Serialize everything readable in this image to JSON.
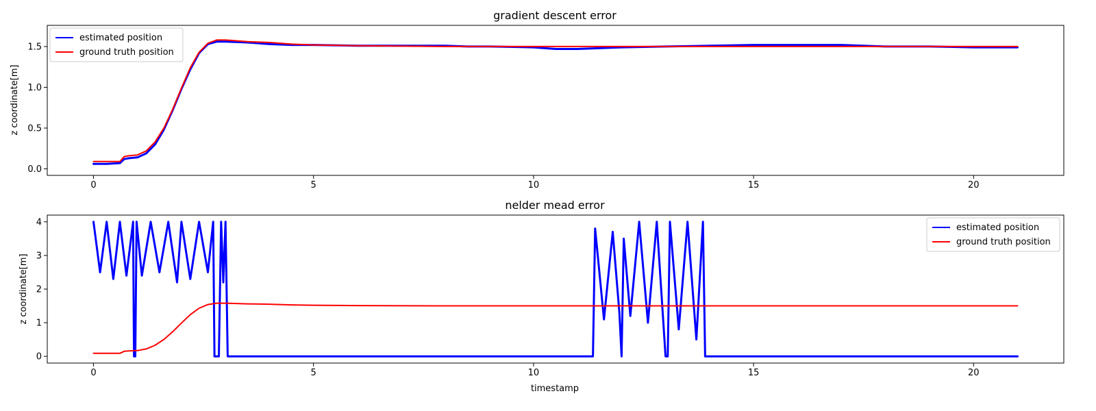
{
  "chart_data": [
    {
      "type": "line",
      "title": "gradient descent error",
      "xlabel": "",
      "ylabel": "z coordinate[m]",
      "xlim": [
        -1.05,
        22.05
      ],
      "ylim": [
        -0.08,
        1.76
      ],
      "xticks": [
        0,
        5,
        10,
        15,
        20
      ],
      "yticks": [
        0.0,
        0.5,
        1.0,
        1.5
      ],
      "ytick_labels": [
        "0.0",
        "0.5",
        "1.0",
        "1.5"
      ],
      "legend_position": "top-left",
      "grid": false,
      "series": [
        {
          "name": "estimated position",
          "color": "#0000ff",
          "x": [
            0,
            0.3,
            0.6,
            0.7,
            0.8,
            1.0,
            1.2,
            1.4,
            1.6,
            1.8,
            2.0,
            2.2,
            2.4,
            2.6,
            2.8,
            3.0,
            3.5,
            4.0,
            4.5,
            5.0,
            6.0,
            7.0,
            8.0,
            8.5,
            9.0,
            10.0,
            10.5,
            11.0,
            12.0,
            13.0,
            14.0,
            15.0,
            16.0,
            17.0,
            17.5,
            18.0,
            19.0,
            20.0,
            21.0
          ],
          "y": [
            0.06,
            0.06,
            0.07,
            0.12,
            0.13,
            0.14,
            0.19,
            0.3,
            0.48,
            0.72,
            0.98,
            1.22,
            1.42,
            1.53,
            1.56,
            1.56,
            1.55,
            1.53,
            1.52,
            1.52,
            1.51,
            1.51,
            1.51,
            1.5,
            1.5,
            1.49,
            1.47,
            1.47,
            1.49,
            1.5,
            1.51,
            1.52,
            1.52,
            1.52,
            1.51,
            1.5,
            1.5,
            1.49,
            1.49
          ]
        },
        {
          "name": "ground truth position",
          "color": "#ff0000",
          "x": [
            0,
            0.6,
            0.7,
            0.8,
            1.0,
            1.2,
            1.4,
            1.6,
            1.8,
            2.0,
            2.2,
            2.4,
            2.6,
            2.8,
            3.0,
            3.5,
            4.0,
            4.5,
            5.0,
            6.0,
            8.0,
            10.0,
            12.0,
            14.0,
            16.0,
            18.0,
            21.0
          ],
          "y": [
            0.09,
            0.09,
            0.15,
            0.16,
            0.17,
            0.22,
            0.33,
            0.5,
            0.73,
            0.99,
            1.24,
            1.43,
            1.54,
            1.58,
            1.58,
            1.56,
            1.55,
            1.53,
            1.52,
            1.51,
            1.5,
            1.5,
            1.5,
            1.5,
            1.5,
            1.5,
            1.5
          ]
        }
      ]
    },
    {
      "type": "line",
      "title": "nelder mead error",
      "xlabel": "timestamp",
      "ylabel": "z coordinate[m]",
      "xlim": [
        -1.05,
        22.05
      ],
      "ylim": [
        -0.2,
        4.2
      ],
      "xticks": [
        0,
        5,
        10,
        15,
        20
      ],
      "yticks": [
        0,
        1,
        2,
        3,
        4
      ],
      "ytick_labels": [
        "0",
        "1",
        "2",
        "3",
        "4"
      ],
      "legend_position": "top-right",
      "grid": false,
      "series": [
        {
          "name": "estimated position",
          "color": "#0000ff",
          "x": [
            0,
            0.15,
            0.3,
            0.45,
            0.6,
            0.75,
            0.9,
            0.92,
            0.95,
            0.98,
            1.1,
            1.3,
            1.5,
            1.7,
            1.9,
            2.0,
            2.2,
            2.4,
            2.6,
            2.72,
            2.75,
            2.85,
            2.9,
            2.95,
            3.0,
            3.05,
            5.0,
            8.0,
            11.0,
            11.35,
            11.4,
            11.6,
            11.8,
            11.95,
            12.0,
            12.05,
            12.2,
            12.4,
            12.6,
            12.8,
            13.0,
            13.05,
            13.1,
            13.3,
            13.5,
            13.7,
            13.85,
            13.9,
            16.0,
            21.0
          ],
          "y": [
            4.0,
            2.5,
            4.0,
            2.3,
            4.0,
            2.4,
            4.0,
            0.0,
            0.0,
            4.0,
            2.4,
            4.0,
            2.5,
            4.0,
            2.2,
            4.0,
            2.3,
            4.0,
            2.5,
            4.0,
            0.0,
            0.0,
            4.0,
            2.2,
            4.0,
            0.0,
            0.0,
            0.0,
            0.0,
            0.0,
            3.8,
            1.1,
            3.7,
            1.3,
            0.0,
            3.5,
            1.2,
            4.0,
            1.0,
            4.0,
            0.0,
            0.0,
            4.0,
            0.8,
            4.0,
            0.5,
            4.0,
            0.0,
            0.0,
            0.0
          ]
        },
        {
          "name": "ground truth position",
          "color": "#ff0000",
          "x": [
            0,
            0.6,
            0.7,
            0.8,
            1.0,
            1.2,
            1.4,
            1.6,
            1.8,
            2.0,
            2.2,
            2.4,
            2.6,
            2.8,
            3.0,
            3.5,
            4.0,
            4.5,
            5.0,
            6.0,
            8.0,
            10.0,
            12.0,
            14.0,
            16.0,
            18.0,
            21.0
          ],
          "y": [
            0.09,
            0.09,
            0.15,
            0.16,
            0.17,
            0.22,
            0.33,
            0.5,
            0.73,
            0.99,
            1.24,
            1.43,
            1.54,
            1.58,
            1.58,
            1.56,
            1.55,
            1.53,
            1.52,
            1.51,
            1.5,
            1.5,
            1.5,
            1.5,
            1.5,
            1.5,
            1.5
          ]
        }
      ]
    }
  ]
}
